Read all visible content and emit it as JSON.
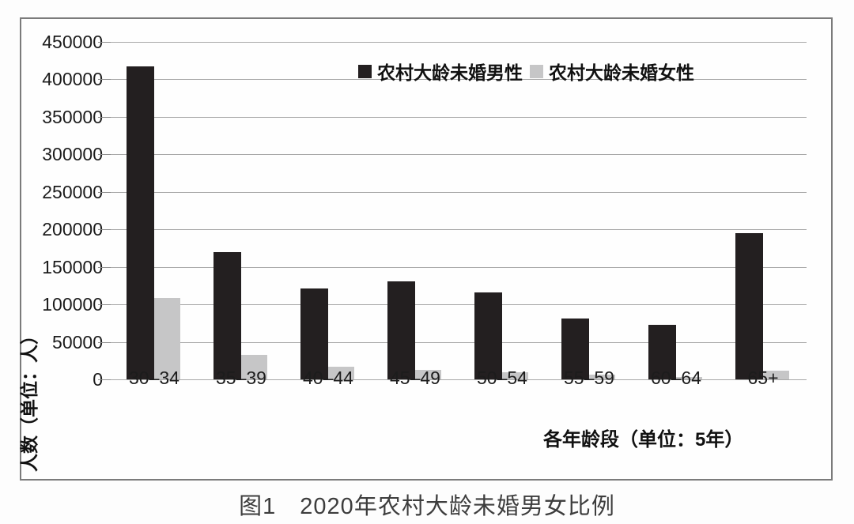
{
  "figure": {
    "caption": "图1　2020年农村大龄未婚男女比例"
  },
  "chart_data": {
    "type": "bar",
    "title": "",
    "categories": [
      "30–34",
      "35–39",
      "40–44",
      "45–49",
      "50–54",
      "55–59",
      "60–64",
      "65+"
    ],
    "series": [
      {
        "name": "农村大龄未婚男性",
        "color": "#231f20",
        "values": [
          417000,
          170000,
          121000,
          131000,
          116000,
          81000,
          73000,
          195000
        ]
      },
      {
        "name": "农村大龄未婚女性",
        "color": "#c6c6c7",
        "values": [
          109000,
          33000,
          17000,
          13000,
          9000,
          6000,
          3000,
          12000
        ]
      }
    ],
    "xlabel": "各年龄段（单位：5年）",
    "ylabel": "人数（单位：人）",
    "ylim": [
      0,
      450000
    ],
    "ytick_step": 50000,
    "grid": true,
    "legend_position": "top-center-inside"
  },
  "colors": {
    "grid": "#a8a8a8",
    "tick": "#8f8f8f",
    "frame": "#7b7b7b",
    "text": "#1c1c1c",
    "caption": "#3d3d3d",
    "background": "#fdfdfd"
  }
}
